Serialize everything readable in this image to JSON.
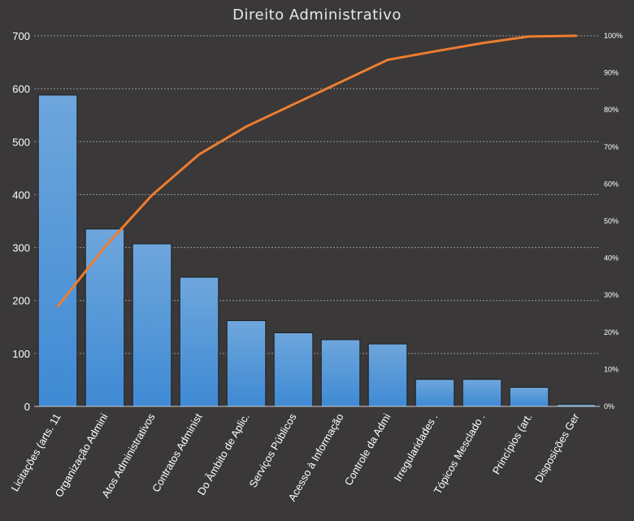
{
  "chart_data": {
    "type": "bar",
    "title": "Direito Administrativo",
    "categories": [
      "Licitações (arts. 11",
      "Organização Admini",
      "Atos Administrativos",
      "Contratos Administ",
      "Do Âmbito de Aplic.",
      "Serviços Públicos",
      "Acesso à Informação",
      "Controle da Admi",
      "Irregularidades .",
      "Tópicos Mesclado .",
      "Princípios (art.",
      "Disposições Ger"
    ],
    "series": [
      {
        "type": "bar",
        "values": [
          588,
          335,
          307,
          244,
          162,
          139,
          126,
          118,
          51,
          51,
          36,
          4
        ]
      },
      {
        "type": "line",
        "axis": "right",
        "values": [
          27,
          43,
          57,
          68,
          75.5,
          81.5,
          87.5,
          93.5,
          95.8,
          98,
          99.8,
          100
        ]
      }
    ],
    "y_left": {
      "min": 0,
      "max": 700,
      "ticks": [
        "0",
        "100",
        "200",
        "300",
        "400",
        "500",
        "600",
        "700"
      ]
    },
    "y_right": {
      "min": 0,
      "max": 100,
      "ticks": [
        "0%",
        "10%",
        "20%",
        "30%",
        "40%",
        "50%",
        "60%",
        "70%",
        "80%",
        "90%",
        "100%"
      ]
    },
    "grid": true,
    "legend": "none",
    "colors": {
      "bar_top": "#6ea6dc",
      "bar_bottom": "#3f8ad4",
      "line": "#ed7d31",
      "grid": "#9a9a9a",
      "background": "#3a3838"
    }
  }
}
